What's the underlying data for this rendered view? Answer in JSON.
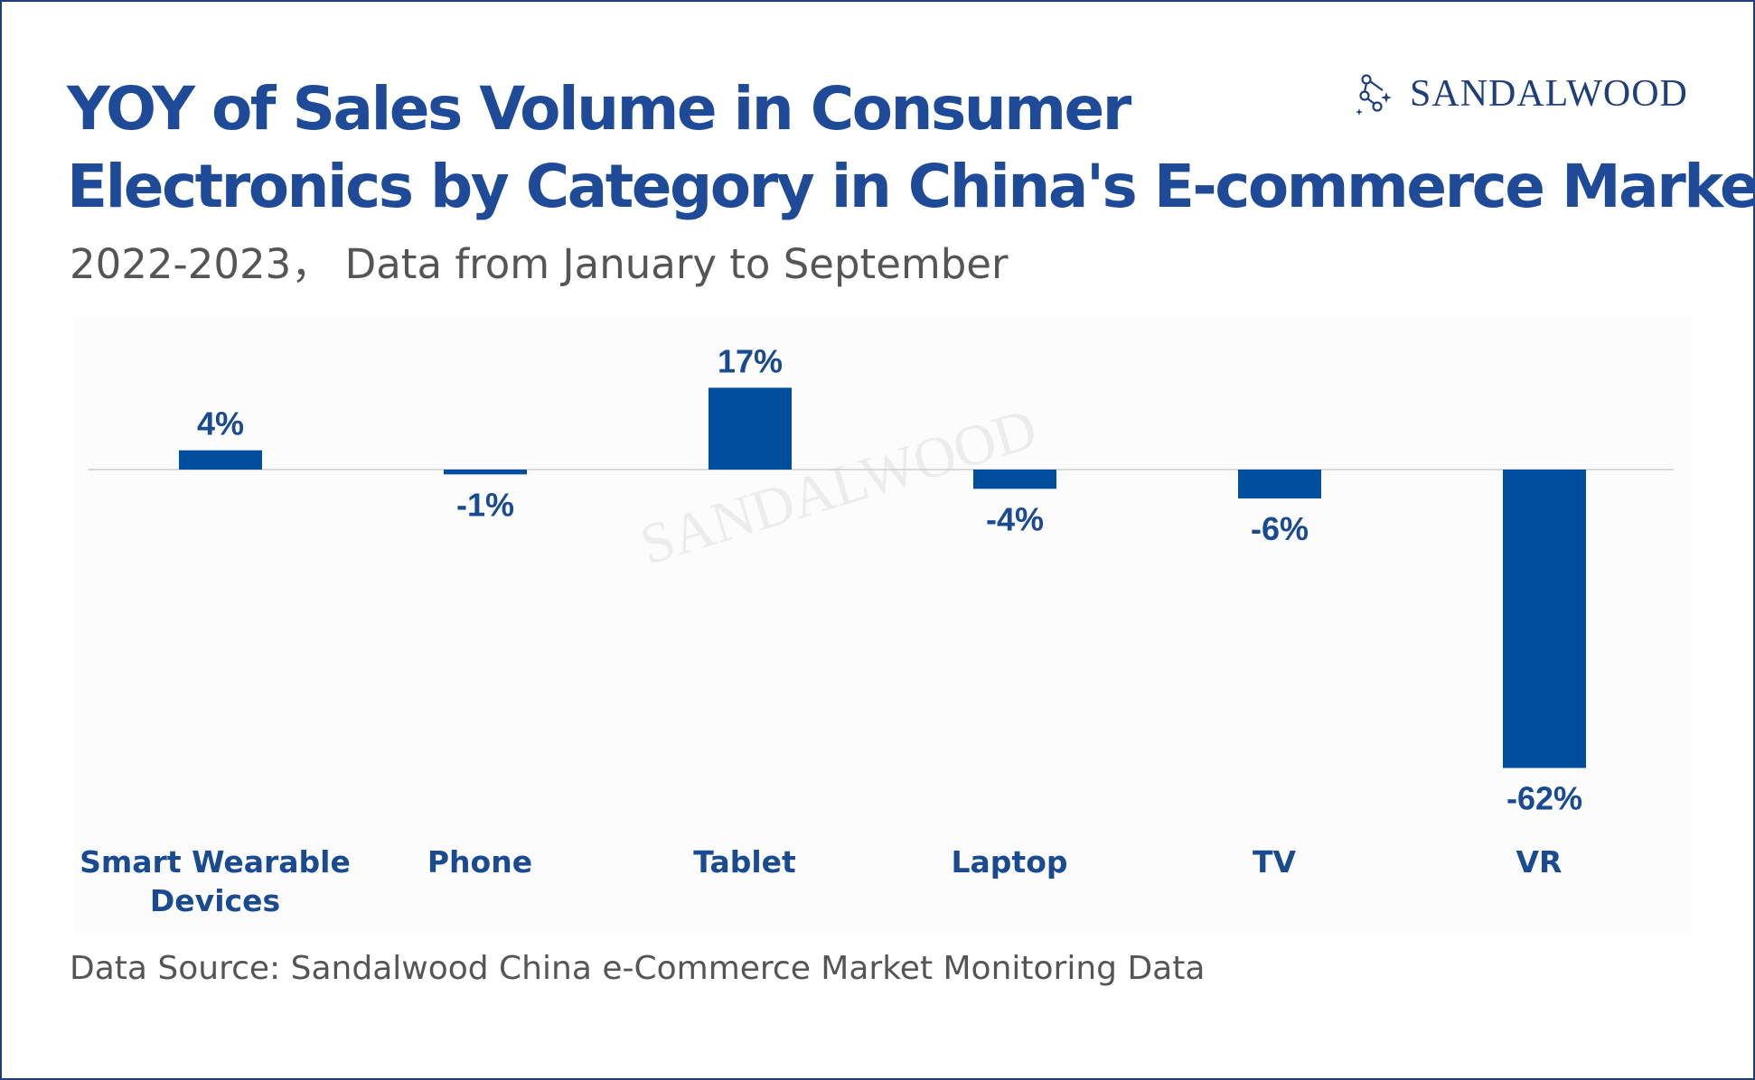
{
  "header": {
    "title_line1": "YOY of Sales Volume in Consumer",
    "title_line2": "Electronics by Category in China's E-commerce Market",
    "subtitle": "2022-2023， Data from January to September"
  },
  "logo": {
    "text": "SANDALWOOD",
    "icon": "sandalwood-logo-icon"
  },
  "watermark": {
    "text": "SANDALWOOD"
  },
  "footer": {
    "source": "Data Source: Sandalwood China e-Commerce Market Monitoring Data"
  },
  "colors": {
    "title": "#1e4a97",
    "bar": "#004f9f",
    "label": "#1a4a8f",
    "subtitle": "#555555"
  },
  "chart_data": {
    "type": "bar",
    "categories": [
      [
        "Smart Wearable",
        "Devices"
      ],
      [
        "Phone"
      ],
      [
        "Tablet"
      ],
      [
        "Laptop"
      ],
      [
        "TV"
      ],
      [
        "VR"
      ]
    ],
    "values": [
      4,
      -1,
      17,
      -4,
      -6,
      -62
    ],
    "data_labels": [
      "4%",
      "-1%",
      "17%",
      "-4%",
      "-6%",
      "-62%"
    ],
    "unit": "%",
    "ylim": [
      -62,
      20
    ],
    "grid": false,
    "legend": false,
    "zero_line": true
  }
}
